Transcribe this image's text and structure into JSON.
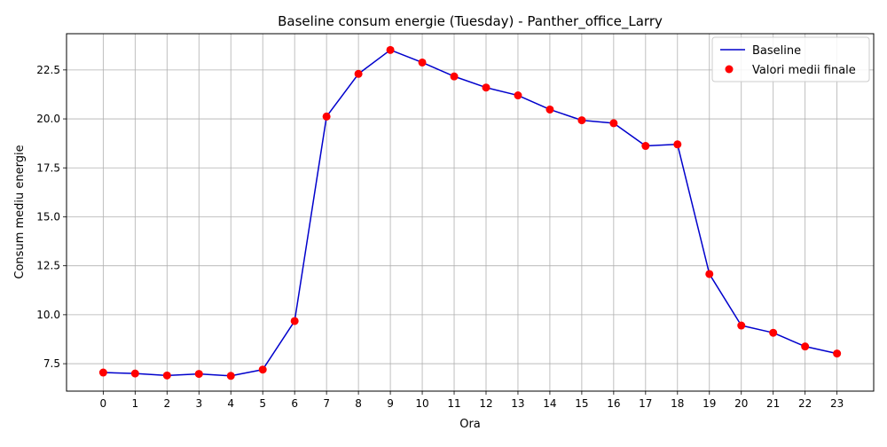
{
  "chart_data": {
    "type": "line",
    "title": "Baseline consum energie (Tuesday) - Panther_office_Larry",
    "xlabel": "Ora",
    "ylabel": "Consum mediu energie",
    "x": [
      0,
      1,
      2,
      3,
      4,
      5,
      6,
      7,
      8,
      9,
      10,
      11,
      12,
      13,
      14,
      15,
      16,
      17,
      18,
      19,
      20,
      21,
      22,
      23
    ],
    "x_ticks": [
      "0",
      "1",
      "2",
      "3",
      "4",
      "5",
      "6",
      "7",
      "8",
      "9",
      "10",
      "11",
      "12",
      "13",
      "14",
      "15",
      "16",
      "17",
      "18",
      "19",
      "20",
      "21",
      "22",
      "23"
    ],
    "y_ticks": [
      "7.5",
      "10.0",
      "12.5",
      "15.0",
      "17.5",
      "20.0",
      "22.5"
    ],
    "xlim": [
      -1.15,
      24.15
    ],
    "ylim": [
      6.1,
      24.35
    ],
    "grid": true,
    "legend_position": "top-right",
    "series": [
      {
        "name": "Baseline",
        "kind": "line",
        "color": "#0000cc",
        "values": [
          7.05,
          7.0,
          6.9,
          6.98,
          6.88,
          7.2,
          9.68,
          20.12,
          22.3,
          23.52,
          22.88,
          22.17,
          21.6,
          21.2,
          20.48,
          19.93,
          19.78,
          18.62,
          18.7,
          12.08,
          9.45,
          9.08,
          8.38,
          8.02
        ]
      },
      {
        "name": "Valori medii finale",
        "kind": "scatter",
        "color": "#ff0000",
        "values": [
          7.05,
          7.0,
          6.9,
          6.98,
          6.88,
          7.2,
          9.68,
          20.12,
          22.3,
          23.52,
          22.88,
          22.17,
          21.6,
          21.2,
          20.48,
          19.93,
          19.78,
          18.62,
          18.7,
          12.08,
          9.45,
          9.08,
          8.38,
          8.02
        ]
      }
    ]
  }
}
